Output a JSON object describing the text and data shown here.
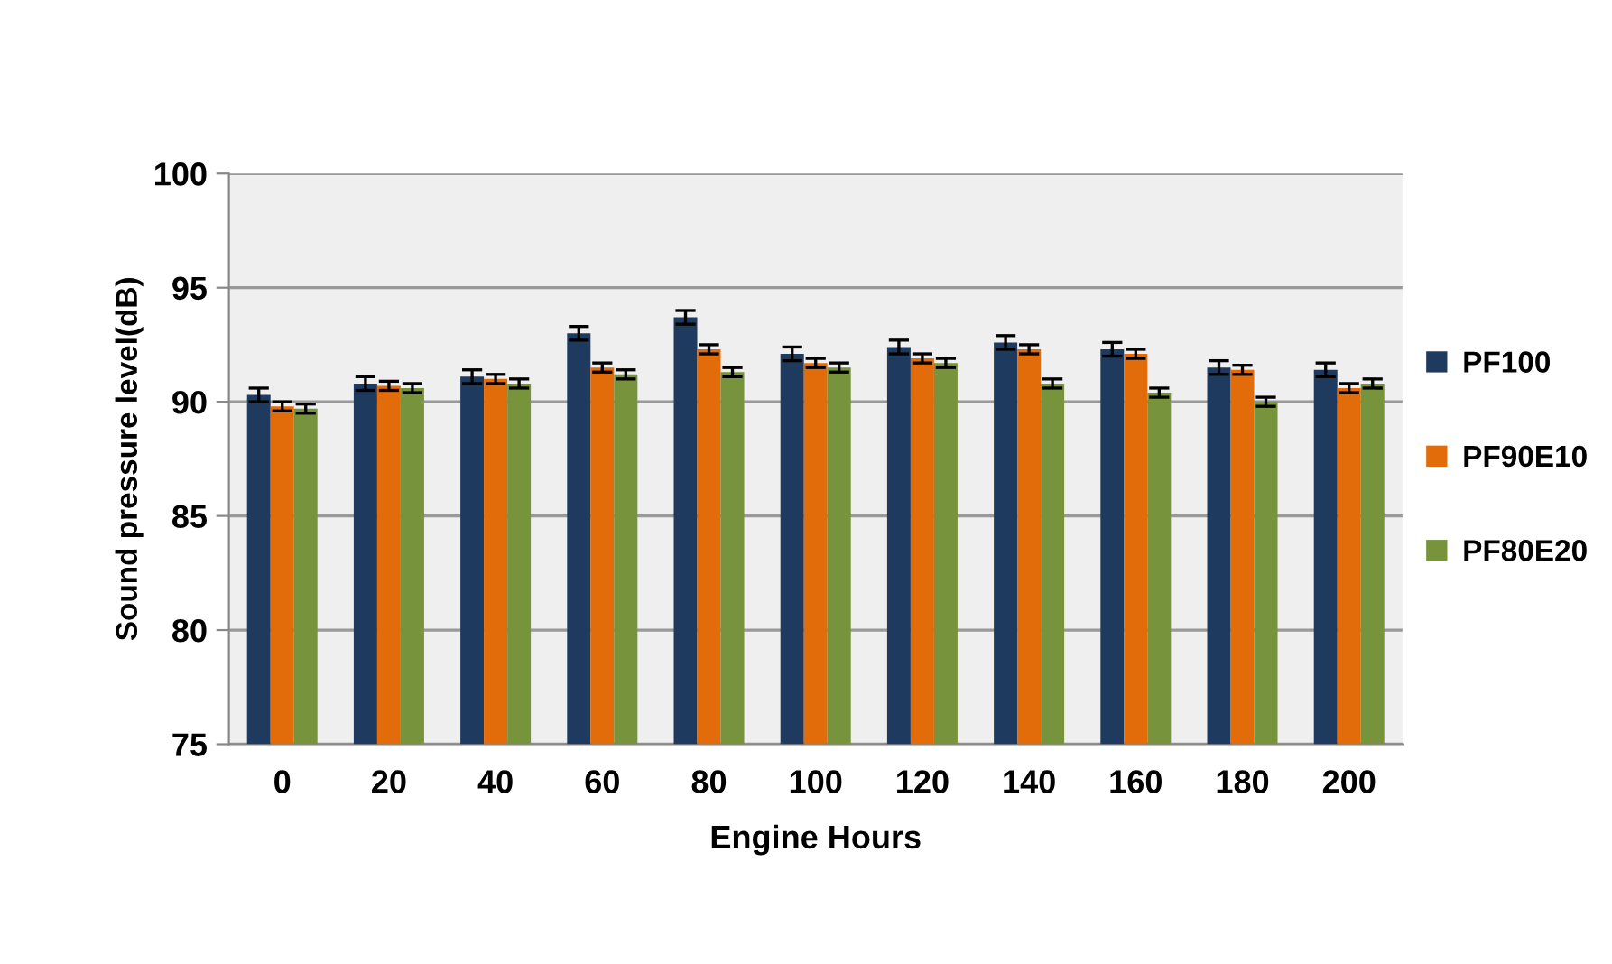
{
  "chart_data": {
    "type": "bar",
    "xlabel": "Engine Hours",
    "ylabel": "Sound pressure level(dB)",
    "categories": [
      "0",
      "20",
      "40",
      "60",
      "80",
      "100",
      "120",
      "140",
      "160",
      "180",
      "200"
    ],
    "series": [
      {
        "name": "PF100",
        "color": "#1f3a5f",
        "values": [
          90.3,
          90.8,
          91.1,
          93.0,
          93.7,
          92.1,
          92.4,
          92.6,
          92.3,
          91.5,
          91.4
        ],
        "errors": [
          0.3,
          0.3,
          0.3,
          0.3,
          0.3,
          0.3,
          0.3,
          0.3,
          0.3,
          0.3,
          0.3
        ]
      },
      {
        "name": "PF90E10",
        "color": "#e36c0a",
        "values": [
          89.8,
          90.7,
          91.0,
          91.5,
          92.3,
          91.7,
          91.9,
          92.3,
          92.1,
          91.4,
          90.6
        ],
        "errors": [
          0.2,
          0.2,
          0.2,
          0.2,
          0.2,
          0.2,
          0.2,
          0.2,
          0.2,
          0.2,
          0.2
        ]
      },
      {
        "name": "PF80E20",
        "color": "#77933c",
        "values": [
          89.7,
          90.6,
          90.8,
          91.2,
          91.3,
          91.5,
          91.7,
          90.8,
          90.4,
          90.0,
          90.8
        ],
        "errors": [
          0.2,
          0.2,
          0.2,
          0.2,
          0.2,
          0.2,
          0.2,
          0.2,
          0.2,
          0.2,
          0.2
        ]
      }
    ],
    "ylim": [
      75,
      100
    ],
    "yticks": [
      75,
      80,
      85,
      90,
      95,
      100
    ],
    "grid": "y",
    "legend": "right"
  }
}
